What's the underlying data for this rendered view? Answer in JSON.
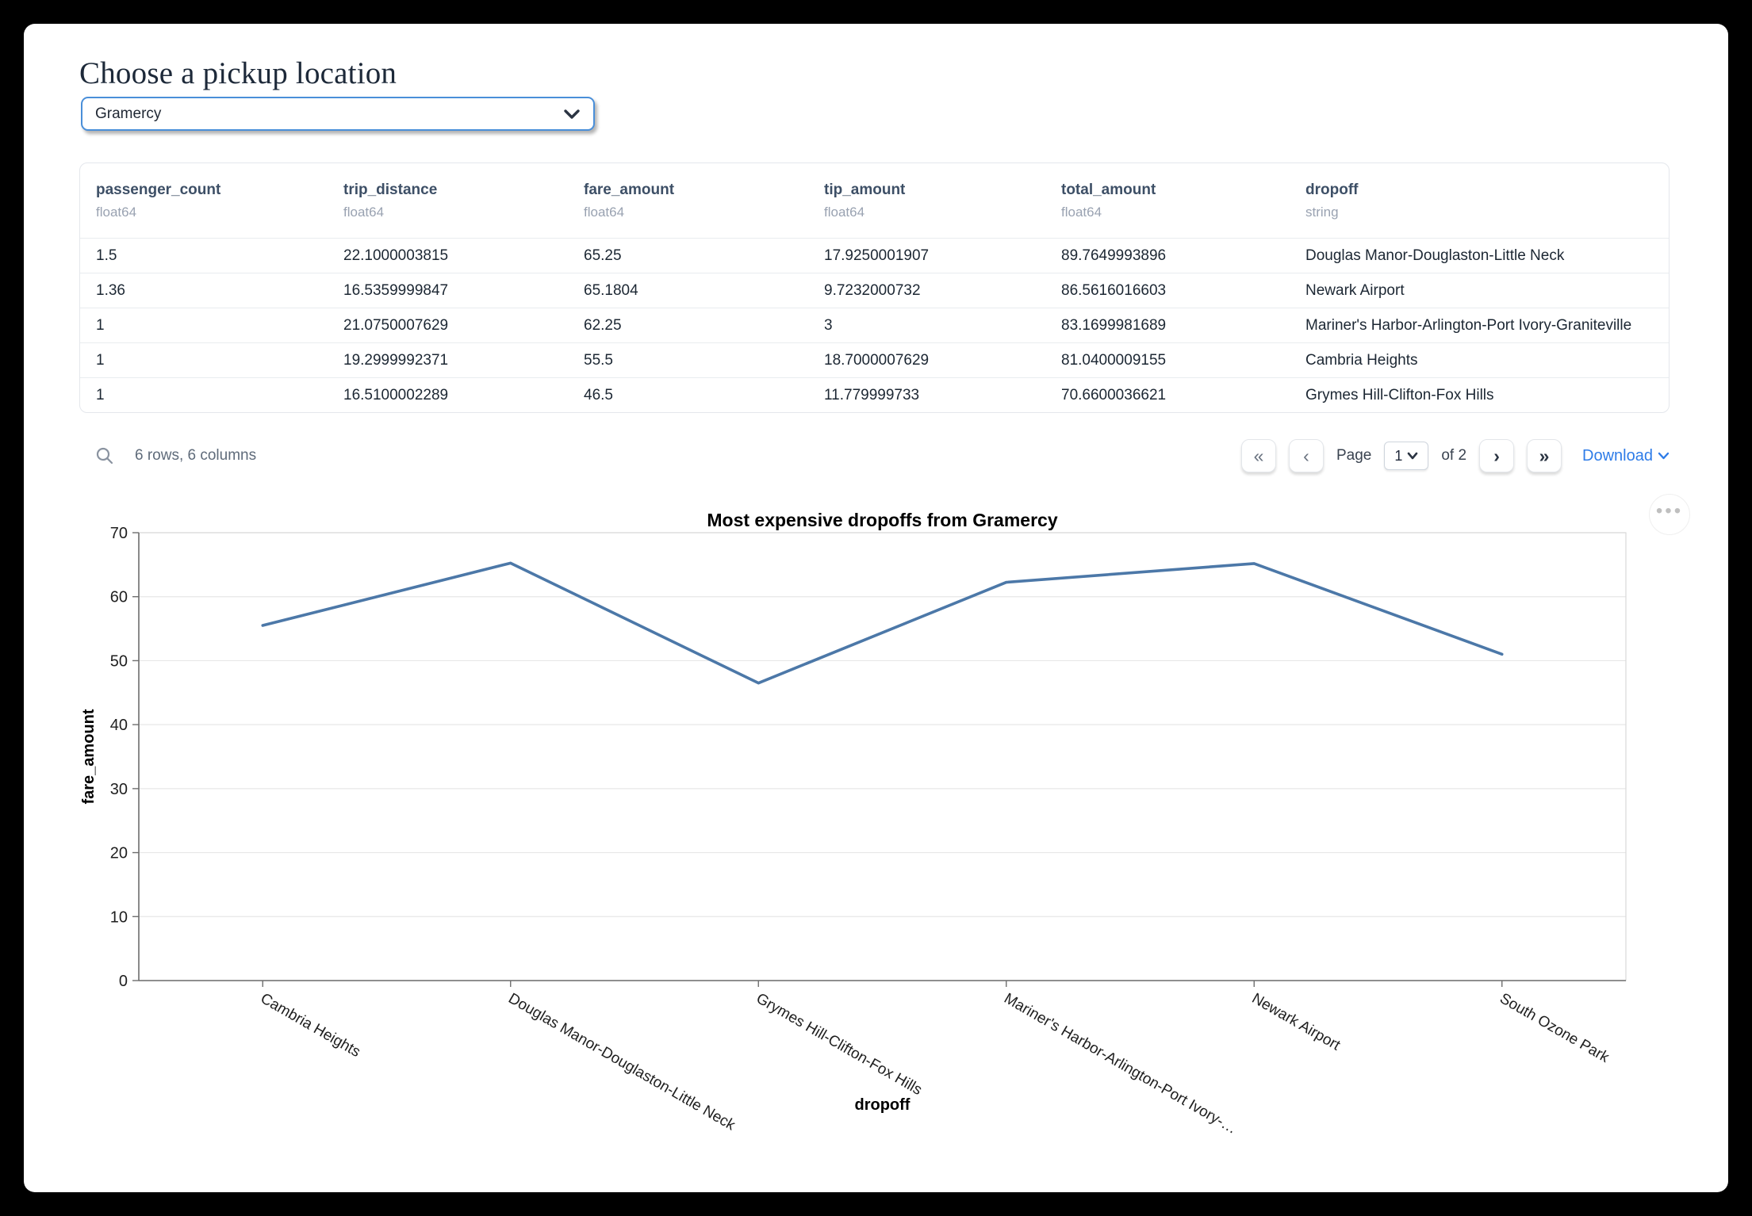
{
  "page": {
    "title": "Choose a pickup location"
  },
  "pickup_select": {
    "value": "Gramercy"
  },
  "table": {
    "columns": [
      {
        "name": "passenger_count",
        "dtype": "float64"
      },
      {
        "name": "trip_distance",
        "dtype": "float64"
      },
      {
        "name": "fare_amount",
        "dtype": "float64"
      },
      {
        "name": "tip_amount",
        "dtype": "float64"
      },
      {
        "name": "total_amount",
        "dtype": "float64"
      },
      {
        "name": "dropoff",
        "dtype": "string"
      }
    ],
    "rows": [
      [
        "1.5",
        "22.1000003815",
        "65.25",
        "17.9250001907",
        "89.7649993896",
        "Douglas Manor-Douglaston-Little Neck"
      ],
      [
        "1.36",
        "16.5359999847",
        "65.1804",
        "9.7232000732",
        "86.5616016603",
        "Newark Airport"
      ],
      [
        "1",
        "21.0750007629",
        "62.25",
        "3",
        "83.1699981689",
        "Mariner's Harbor-Arlington-Port Ivory-Graniteville"
      ],
      [
        "1",
        "19.2999992371",
        "55.5",
        "18.7000007629",
        "81.0400009155",
        "Cambria Heights"
      ],
      [
        "1",
        "16.5100002289",
        "46.5",
        "11.779999733",
        "70.6600036621",
        "Grymes Hill-Clifton-Fox Hills"
      ]
    ],
    "footer": {
      "summary": "6 rows, 6 columns"
    },
    "pagination": {
      "first_label": "«",
      "prev_label": "‹",
      "page_label": "Page",
      "current_page": "1",
      "of_label": "of 2",
      "next_label": "›",
      "last_label": "»",
      "download_label": "Download"
    }
  },
  "chart_data": {
    "type": "line",
    "title": "Most expensive dropoffs from Gramercy",
    "xlabel": "dropoff",
    "ylabel": "fare_amount",
    "categories": [
      "Cambria Heights",
      "Douglas Manor-Douglaston-Little Neck",
      "Grymes Hill-Clifton-Fox Hills",
      "Mariner's Harbor-Arlington-Port Ivory-Graniteville",
      "Newark Airport",
      "South Ozone Park"
    ],
    "x_tick_labels": [
      "Cambria Heights",
      "Douglas Manor-Douglaston-Little Neck",
      "Grymes Hill-Clifton-Fox Hills",
      "Mariner's Harbor-Arlington-Port Ivory-…",
      "Newark Airport",
      "South Ozone Park"
    ],
    "values": [
      55.5,
      65.25,
      46.5,
      62.25,
      65.1804,
      51
    ],
    "ylim": [
      0,
      70
    ],
    "yticks": [
      0,
      10,
      20,
      30,
      40,
      50,
      60,
      70
    ],
    "grid": true,
    "legend": "none",
    "line_color": "#4c78a8"
  },
  "colors": {
    "select_border": "#4a8fd9",
    "download_blue": "#2e7ce8",
    "header_text": "#3d4f66",
    "dtype_text": "#99a2b1"
  }
}
